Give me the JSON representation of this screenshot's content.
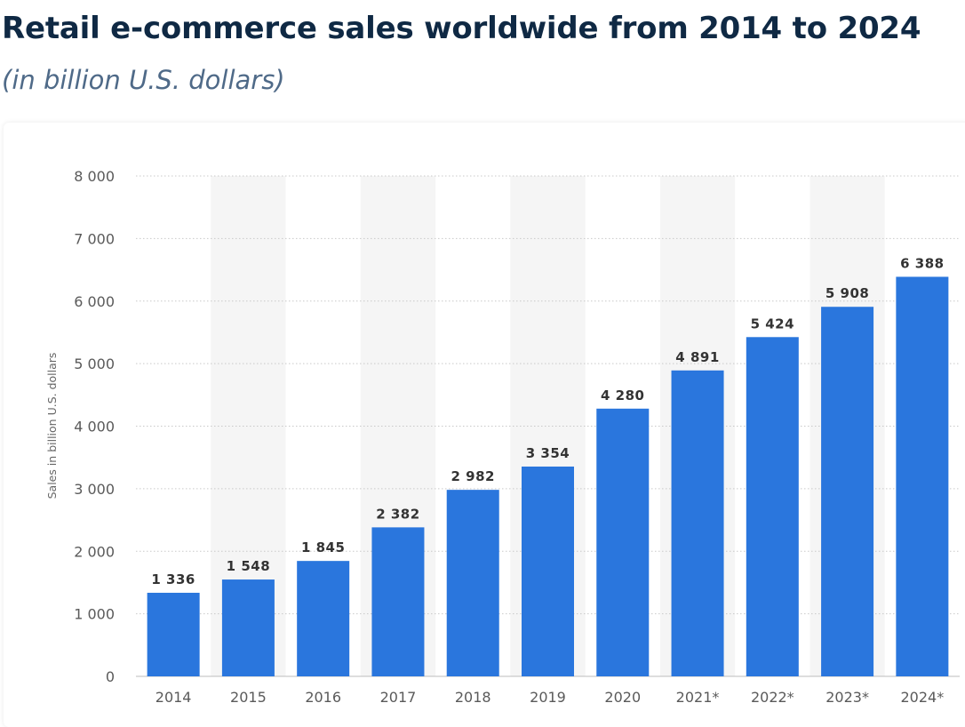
{
  "header": {
    "title": "Retail e-commerce sales worldwide from 2014 to 2024",
    "subtitle": "(in billion U.S. dollars)"
  },
  "colors": {
    "bar": "#2a76dd",
    "band": "#f5f5f5",
    "gridline": "#c9c9c9",
    "axis_text": "#5a5a5a",
    "value_text": "#333333",
    "title": "#0f2944",
    "subtitle": "#4f6a88"
  },
  "chart_data": {
    "type": "bar",
    "title": "Retail e-commerce sales worldwide from 2014 to 2024",
    "subtitle": "(in billion U.S. dollars)",
    "categories": [
      "2014",
      "2015",
      "2016",
      "2017",
      "2018",
      "2019",
      "2020",
      "2021*",
      "2022*",
      "2023*",
      "2024*"
    ],
    "values": [
      1336,
      1548,
      1845,
      2382,
      2982,
      3354,
      4280,
      4891,
      5424,
      5908,
      6388
    ],
    "value_labels": [
      "1 336",
      "1 548",
      "1 845",
      "2 382",
      "2 982",
      "3 354",
      "4 280",
      "4 891",
      "5 424",
      "5 908",
      "6 388"
    ],
    "ylabel": "Sales in billion U.S. dollars",
    "xlabel": "",
    "ylim": [
      0,
      8000
    ],
    "yticks": [
      0,
      1000,
      2000,
      3000,
      4000,
      5000,
      6000,
      7000,
      8000
    ],
    "ytick_labels": [
      "0",
      "1 000",
      "2 000",
      "3 000",
      "4 000",
      "5 000",
      "6 000",
      "7 000",
      "8 000"
    ],
    "grid": true,
    "legend": "none"
  }
}
